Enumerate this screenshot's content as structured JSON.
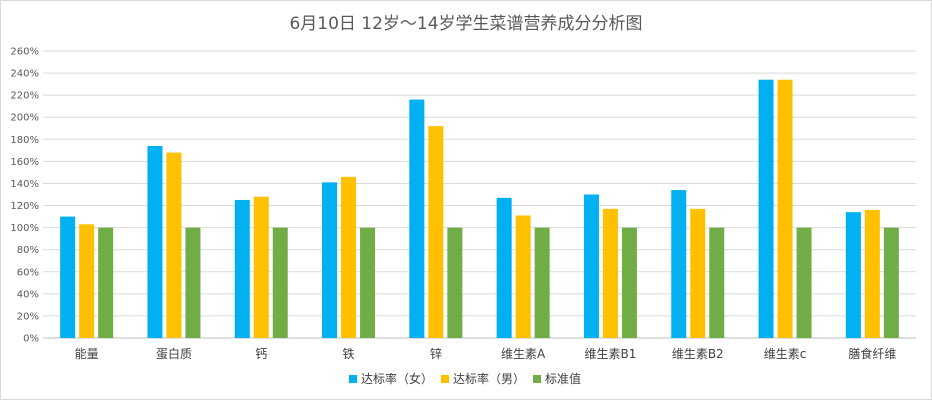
{
  "chart_data": {
    "type": "bar",
    "title": "6月10日 12岁～14岁学生菜谱营养成分分析图",
    "xlabel": "",
    "ylabel": "",
    "ylim": [
      0,
      260
    ],
    "y_tick_step": 20,
    "y_tick_suffix": "%",
    "grid": true,
    "legend_position": "bottom",
    "categories": [
      "能量",
      "蛋白质",
      "钙",
      "铁",
      "锌",
      "维生素A",
      "维生素B1",
      "维生素B2",
      "维生素c",
      "膳食纤维"
    ],
    "series": [
      {
        "name": "达标率（女）",
        "color": "#00b0f0",
        "values": [
          110,
          174,
          125,
          141,
          216,
          127,
          130,
          134,
          234,
          114
        ]
      },
      {
        "name": "达标率（男）",
        "color": "#ffc000",
        "values": [
          103,
          168,
          128,
          146,
          192,
          111,
          117,
          117,
          234,
          116
        ]
      },
      {
        "name": "标准值",
        "color": "#70ad47",
        "values": [
          100,
          100,
          100,
          100,
          100,
          100,
          100,
          100,
          100,
          100
        ]
      }
    ]
  }
}
